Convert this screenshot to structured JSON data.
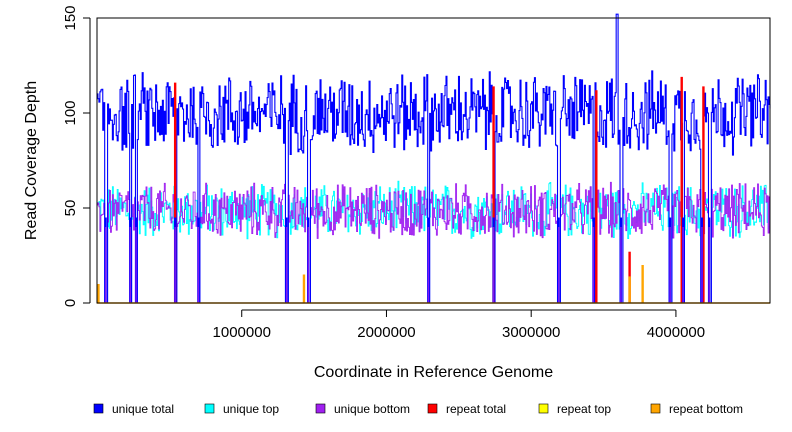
{
  "chart_data": {
    "type": "line",
    "title": "",
    "xlabel": "Coordinate in Reference Genome",
    "ylabel": "Read Coverage Depth",
    "xlim": [
      0,
      4650000
    ],
    "ylim": [
      0,
      150
    ],
    "xticks": [
      1000000,
      2000000,
      3000000,
      4000000
    ],
    "xtick_labels": [
      "1000000",
      "2000000",
      "3000000",
      "4000000"
    ],
    "yticks": [
      0,
      50,
      100,
      150
    ],
    "ytick_labels": [
      "0",
      "50",
      "100",
      "150"
    ],
    "grid": false,
    "legend_position": "bottom",
    "series": [
      {
        "name": "unique total",
        "color": "#0000ff",
        "typical_range": [
          80,
          120
        ],
        "peak": {
          "x": 3590000,
          "y": 152
        }
      },
      {
        "name": "unique top",
        "color": "#00ffff",
        "typical_range": [
          35,
          62
        ]
      },
      {
        "name": "unique bottom",
        "color": "#a020f0",
        "typical_range": [
          35,
          62
        ]
      },
      {
        "name": "repeat total",
        "color": "#ff0000",
        "typical_range": [
          0,
          0
        ],
        "spikes": [
          {
            "x": 540000,
            "y": 116
          },
          {
            "x": 2740000,
            "y": 114
          },
          {
            "x": 3450000,
            "y": 112
          },
          {
            "x": 3680000,
            "y": 27
          },
          {
            "x": 4040000,
            "y": 119
          },
          {
            "x": 4190000,
            "y": 114
          }
        ]
      },
      {
        "name": "repeat top",
        "color": "#ffff00",
        "typical_range": [
          0,
          0
        ]
      },
      {
        "name": "repeat bottom",
        "color": "#ffa500",
        "typical_range": [
          0,
          0
        ],
        "spikes": [
          {
            "x": 10000,
            "y": 10
          },
          {
            "x": 1430000,
            "y": 15
          },
          {
            "x": 3680000,
            "y": 14
          },
          {
            "x": 3770000,
            "y": 20
          }
        ]
      }
    ],
    "dropouts_x": [
      60000,
      230000,
      270000,
      540000,
      700000,
      1310000,
      1460000,
      2290000,
      2740000,
      3190000,
      3430000,
      3620000,
      3960000,
      4050000,
      4180000,
      4230000
    ]
  }
}
